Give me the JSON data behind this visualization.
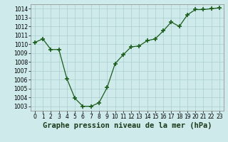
{
  "x": [
    0,
    1,
    2,
    3,
    4,
    5,
    6,
    7,
    8,
    9,
    10,
    11,
    12,
    13,
    14,
    15,
    16,
    17,
    18,
    19,
    20,
    21,
    22,
    23
  ],
  "y": [
    1010.2,
    1010.6,
    1009.4,
    1009.4,
    1006.1,
    1003.9,
    1003.0,
    1003.0,
    1003.4,
    1005.1,
    1007.8,
    1008.8,
    1009.7,
    1009.8,
    1010.4,
    1010.6,
    1011.5,
    1012.5,
    1012.0,
    1013.3,
    1013.9,
    1013.9,
    1014.0,
    1014.1
  ],
  "line_color": "#1a5c1a",
  "marker": "+",
  "marker_size": 4,
  "marker_lw": 1.2,
  "bg_color": "#ceeaea",
  "grid_color": "#aacece",
  "title": "Graphe pression niveau de la mer (hPa)",
  "xlabel_ticks": [
    "0",
    "1",
    "2",
    "3",
    "4",
    "5",
    "6",
    "7",
    "8",
    "9",
    "10",
    "11",
    "12",
    "13",
    "14",
    "15",
    "16",
    "17",
    "18",
    "19",
    "20",
    "21",
    "22",
    "23"
  ],
  "ylim": [
    1002.5,
    1014.5
  ],
  "yticks": [
    1003,
    1004,
    1005,
    1006,
    1007,
    1008,
    1009,
    1010,
    1011,
    1012,
    1013,
    1014
  ],
  "title_fontsize": 7.5,
  "tick_fontsize": 5.5,
  "line_width": 0.9
}
